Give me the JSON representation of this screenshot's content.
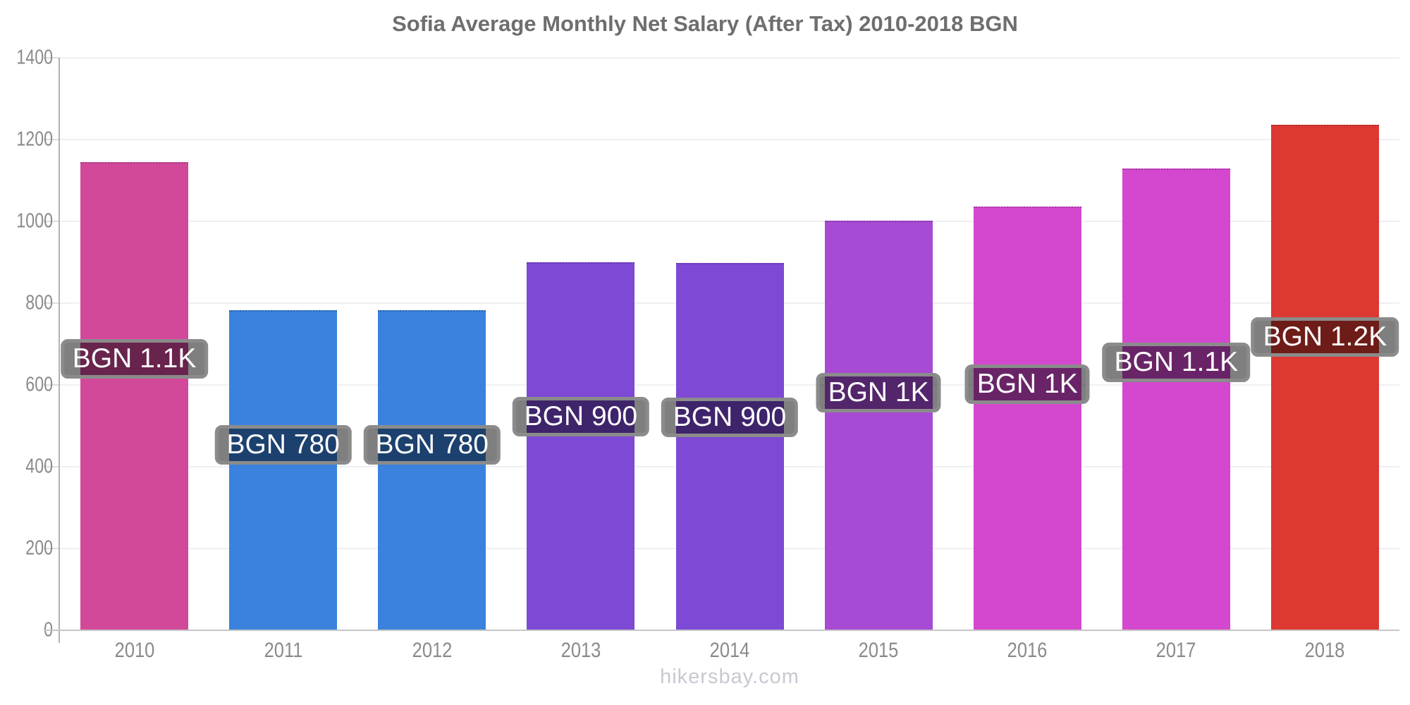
{
  "title": "Sofia Average Monthly Net Salary (After Tax) 2010-2018 BGN",
  "watermark": "hikersbay.com",
  "chart_data": {
    "type": "bar",
    "title": "Sofia Average Monthly Net Salary (After Tax) 2010-2018 BGN",
    "categories": [
      "2010",
      "2011",
      "2012",
      "2013",
      "2014",
      "2015",
      "2016",
      "2017",
      "2018"
    ],
    "values": [
      1145,
      783,
      783,
      900,
      898,
      1002,
      1037,
      1130,
      1237
    ],
    "bar_labels": [
      "BGN 1.1K",
      "BGN 780",
      "BGN 780",
      "BGN 900",
      "BGN 900",
      "BGN 1K",
      "BGN 1K",
      "BGN 1.1K",
      "BGN 1.2K"
    ],
    "bar_colors": [
      "#d2499a",
      "#3a82dd",
      "#3a82dd",
      "#7d49d5",
      "#7d49d5",
      "#a74ad4",
      "#d348ce",
      "#d348ce",
      "#dd3831"
    ],
    "xlabel": "",
    "ylabel": "",
    "ylim": [
      0,
      1400
    ],
    "yticks": [
      0,
      200,
      400,
      600,
      800,
      1000,
      1200,
      1400
    ],
    "grid": true,
    "legend": false
  },
  "colors": {
    "title_text": "#6e6e6e",
    "tick_text": "#8a8a8a",
    "gridline": "#eff0f3",
    "y_axis_line": "#b2b2b2",
    "x_axis_line": "#c6c6c8",
    "label_background": "rgba(0,0,0,0.5)",
    "label_border": "#8b8b8b",
    "label_text": "#ffffff",
    "watermark_text": "#c7c8d2"
  }
}
